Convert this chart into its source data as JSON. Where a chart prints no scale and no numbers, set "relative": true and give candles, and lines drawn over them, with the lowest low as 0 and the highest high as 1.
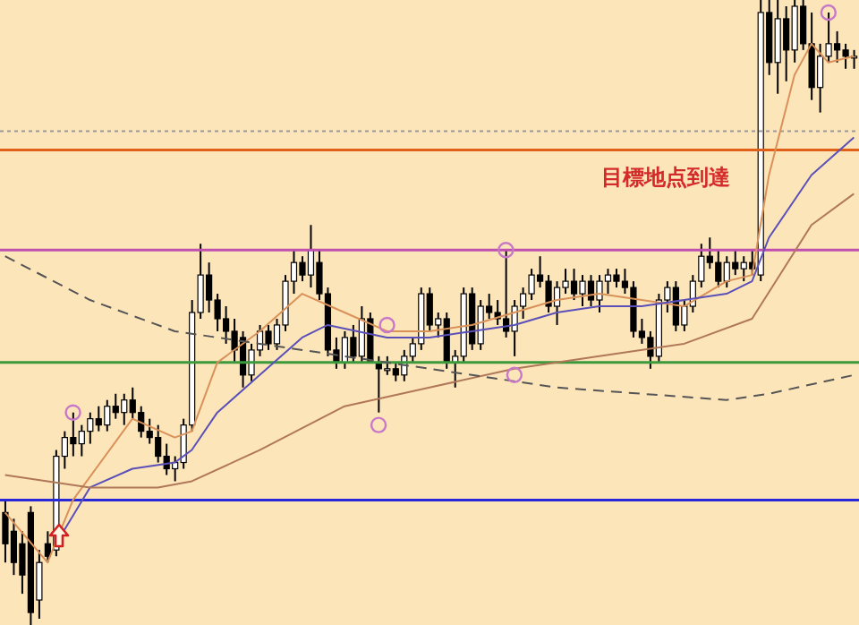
{
  "chart_data": {
    "type": "candlestick",
    "relative": true,
    "categories": [
      null,
      null,
      null,
      null,
      null,
      null,
      null,
      null,
      null,
      null,
      null,
      null,
      null,
      null,
      null,
      null,
      null,
      null,
      null,
      null,
      null,
      null,
      null,
      null,
      null,
      null,
      null,
      null,
      null,
      null,
      null,
      null,
      null,
      null,
      null,
      null,
      null,
      null,
      null,
      null,
      null,
      null,
      null,
      null,
      null,
      null,
      null,
      null,
      null,
      null,
      null,
      null,
      null,
      null,
      null,
      null,
      null,
      null,
      null,
      null,
      null,
      null,
      null,
      null,
      null,
      null,
      null,
      null,
      null,
      null,
      null,
      null,
      null,
      null,
      null,
      null,
      null,
      null,
      null,
      null,
      null,
      null,
      null,
      null,
      null,
      null,
      null,
      null,
      null,
      null,
      null,
      null,
      null,
      null,
      null,
      null,
      null,
      null,
      null,
      null,
      null
    ],
    "ohlc": [
      [
        0.18,
        0.2,
        0.1,
        0.13
      ],
      [
        0.15,
        0.17,
        0.08,
        0.1
      ],
      [
        0.13,
        0.15,
        0.05,
        0.08
      ],
      [
        0.18,
        0.19,
        0,
        0.02
      ],
      [
        0.04,
        0.12,
        0.01,
        0.1
      ],
      [
        0.13,
        0.15,
        0.1,
        0.11
      ],
      [
        0.12,
        0.28,
        0.11,
        0.27
      ],
      [
        0.27,
        0.31,
        0.25,
        0.3
      ],
      [
        0.3,
        0.34,
        0.27,
        0.29
      ],
      [
        0.29,
        0.32,
        0.27,
        0.31
      ],
      [
        0.31,
        0.34,
        0.29,
        0.33
      ],
      [
        0.33,
        0.35,
        0.31,
        0.32
      ],
      [
        0.32,
        0.36,
        0.31,
        0.35
      ],
      [
        0.35,
        0.37,
        0.33,
        0.34
      ],
      [
        0.34,
        0.37,
        0.32,
        0.36
      ],
      [
        0.36,
        0.38,
        0.33,
        0.34
      ],
      [
        0.34,
        0.35,
        0.3,
        0.31
      ],
      [
        0.31,
        0.33,
        0.29,
        0.3
      ],
      [
        0.3,
        0.32,
        0.26,
        0.27
      ],
      [
        0.27,
        0.29,
        0.24,
        0.25
      ],
      [
        0.25,
        0.27,
        0.23,
        0.26
      ],
      [
        0.26,
        0.33,
        0.25,
        0.32
      ],
      [
        0.32,
        0.52,
        0.31,
        0.5
      ],
      [
        0.5,
        0.61,
        0.49,
        0.56
      ],
      [
        0.56,
        0.58,
        0.5,
        0.52
      ],
      [
        0.52,
        0.53,
        0.47,
        0.49
      ],
      [
        0.49,
        0.51,
        0.45,
        0.47
      ],
      [
        0.47,
        0.49,
        0.42,
        0.44
      ],
      [
        0.46,
        0.47,
        0.38,
        0.4
      ],
      [
        0.4,
        0.45,
        0.39,
        0.44
      ],
      [
        0.44,
        0.48,
        0.43,
        0.47
      ],
      [
        0.47,
        0.48,
        0.44,
        0.45
      ],
      [
        0.45,
        0.49,
        0.44,
        0.48
      ],
      [
        0.48,
        0.56,
        0.47,
        0.55
      ],
      [
        0.55,
        0.6,
        0.53,
        0.58
      ],
      [
        0.58,
        0.59,
        0.55,
        0.56
      ],
      [
        0.56,
        0.64,
        0.54,
        0.6
      ],
      [
        0.58,
        0.6,
        0.52,
        0.53
      ],
      [
        0.53,
        0.54,
        0.43,
        0.44
      ],
      [
        0.44,
        0.46,
        0.41,
        0.42
      ],
      [
        0.42,
        0.47,
        0.41,
        0.46
      ],
      [
        0.46,
        0.48,
        0.42,
        0.43
      ],
      [
        0.43,
        0.51,
        0.42,
        0.49
      ],
      [
        0.49,
        0.5,
        0.42,
        0.42
      ],
      [
        0.42,
        0.43,
        0.34,
        0.41
      ],
      [
        0.41,
        0.43,
        0.4,
        0.41
      ],
      [
        0.41,
        0.42,
        0.39,
        0.4
      ],
      [
        0.4,
        0.44,
        0.39,
        0.43
      ],
      [
        0.43,
        0.46,
        0.42,
        0.45
      ],
      [
        0.45,
        0.54,
        0.44,
        0.53
      ],
      [
        0.53,
        0.54,
        0.47,
        0.48
      ],
      [
        0.48,
        0.5,
        0.46,
        0.49
      ],
      [
        0.49,
        0.5,
        0.41,
        0.42
      ],
      [
        0.42,
        0.44,
        0.38,
        0.43
      ],
      [
        0.43,
        0.54,
        0.42,
        0.53
      ],
      [
        0.53,
        0.54,
        0.44,
        0.45
      ],
      [
        0.45,
        0.52,
        0.44,
        0.51
      ],
      [
        0.51,
        0.53,
        0.49,
        0.5
      ],
      [
        0.5,
        0.52,
        0.48,
        0.49
      ],
      [
        0.49,
        0.6,
        0.46,
        0.47
      ],
      [
        0.47,
        0.52,
        0.43,
        0.51
      ],
      [
        0.51,
        0.54,
        0.49,
        0.53
      ],
      [
        0.53,
        0.57,
        0.52,
        0.56
      ],
      [
        0.56,
        0.59,
        0.54,
        0.55
      ],
      [
        0.55,
        0.56,
        0.5,
        0.51
      ],
      [
        0.51,
        0.55,
        0.48,
        0.54
      ],
      [
        0.54,
        0.57,
        0.53,
        0.55
      ],
      [
        0.55,
        0.57,
        0.52,
        0.53
      ],
      [
        0.53,
        0.56,
        0.51,
        0.55
      ],
      [
        0.55,
        0.56,
        0.51,
        0.52
      ],
      [
        0.52,
        0.56,
        0.5,
        0.55
      ],
      [
        0.55,
        0.57,
        0.53,
        0.56
      ],
      [
        0.56,
        0.57,
        0.54,
        0.55
      ],
      [
        0.55,
        0.57,
        0.53,
        0.54
      ],
      [
        0.54,
        0.55,
        0.46,
        0.47
      ],
      [
        0.47,
        0.49,
        0.45,
        0.46
      ],
      [
        0.46,
        0.47,
        0.41,
        0.43
      ],
      [
        0.43,
        0.53,
        0.42,
        0.52
      ],
      [
        0.52,
        0.55,
        0.5,
        0.54
      ],
      [
        0.54,
        0.55,
        0.47,
        0.48
      ],
      [
        0.48,
        0.52,
        0.47,
        0.51
      ],
      [
        0.51,
        0.56,
        0.5,
        0.55
      ],
      [
        0.55,
        0.61,
        0.54,
        0.59
      ],
      [
        0.59,
        0.62,
        0.57,
        0.58
      ],
      [
        0.58,
        0.6,
        0.54,
        0.55
      ],
      [
        0.55,
        0.59,
        0.54,
        0.58
      ],
      [
        0.58,
        0.6,
        0.56,
        0.57
      ],
      [
        0.57,
        0.59,
        0.55,
        0.58
      ],
      [
        0.58,
        0.6,
        0.56,
        0.57
      ],
      [
        0.56,
        1,
        0.55,
        0.98
      ],
      [
        0.98,
        1,
        0.88,
        0.9
      ],
      [
        0.9,
        1,
        0.85,
        0.97
      ],
      [
        0.97,
        0.99,
        0.87,
        0.92
      ],
      [
        0.92,
        1,
        0.9,
        0.99
      ],
      [
        0.99,
        1,
        0.92,
        0.93
      ],
      [
        0.93,
        0.98,
        0.84,
        0.86
      ],
      [
        0.86,
        0.93,
        0.82,
        0.91
      ],
      [
        0.91,
        0.98,
        0.9,
        0.93
      ],
      [
        0.93,
        0.95,
        0.9,
        0.92
      ],
      [
        0.92,
        0.93,
        0.89,
        0.91
      ],
      [
        0.91,
        0.92,
        0.89,
        0.91
      ]
    ],
    "series": [
      {
        "type": "line",
        "color": "#d9915a",
        "values": [
          0.18,
          null,
          null,
          null,
          null,
          0.1,
          null,
          null,
          0.2,
          null,
          null,
          null,
          null,
          null,
          null,
          0.33,
          null,
          null,
          null,
          null,
          0.3,
          null,
          0.31,
          null,
          null,
          0.42,
          null,
          null,
          null,
          null,
          0.47,
          null,
          null,
          null,
          null,
          0.53,
          null,
          null,
          null,
          null,
          0.5,
          null,
          null,
          null,
          null,
          0.47,
          null,
          null,
          null,
          null,
          0.47,
          null,
          null,
          null,
          null,
          0.48,
          null,
          null,
          null,
          null,
          0.5,
          null,
          null,
          null,
          null,
          0.52,
          null,
          null,
          null,
          null,
          0.53,
          null,
          null,
          null,
          null,
          0.52,
          null,
          null,
          null,
          null,
          0.51,
          null,
          null,
          null,
          null,
          0.55,
          null,
          null,
          0.56,
          null,
          0.72,
          null,
          null,
          0.88,
          null,
          0.93,
          null,
          0.9,
          null,
          null,
          0.91
        ]
      },
      {
        "type": "line",
        "color": "#5a50b8",
        "values": [
          null,
          null,
          null,
          null,
          null,
          null,
          0.13,
          null,
          null,
          null,
          0.22,
          null,
          null,
          null,
          null,
          0.25,
          null,
          null,
          null,
          null,
          0.26,
          null,
          0.28,
          null,
          null,
          0.34,
          null,
          null,
          null,
          null,
          0.4,
          null,
          null,
          null,
          null,
          0.46,
          null,
          null,
          0.48,
          null,
          null,
          null,
          null,
          null,
          null,
          0.46,
          null,
          null,
          null,
          null,
          0.46,
          null,
          null,
          null,
          null,
          0.47,
          null,
          null,
          null,
          null,
          0.48,
          null,
          null,
          null,
          null,
          0.5,
          null,
          null,
          null,
          null,
          0.51,
          null,
          null,
          null,
          null,
          0.51,
          null,
          null,
          null,
          null,
          0.52,
          null,
          null,
          null,
          null,
          0.53,
          null,
          null,
          0.55,
          null,
          0.62,
          null,
          null,
          null,
          null,
          0.72,
          null,
          null,
          null,
          null,
          0.78
        ]
      },
      {
        "type": "line",
        "color": "#b07858",
        "values": [
          0.24,
          null,
          null,
          null,
          null,
          null,
          null,
          null,
          null,
          null,
          0.22,
          null,
          null,
          null,
          null,
          null,
          null,
          null,
          0.22,
          null,
          null,
          null,
          0.23,
          null,
          null,
          null,
          null,
          null,
          null,
          null,
          0.28,
          null,
          null,
          null,
          null,
          null,
          null,
          null,
          null,
          null,
          0.35,
          null,
          null,
          null,
          null,
          null,
          null,
          null,
          null,
          null,
          0.38,
          null,
          null,
          null,
          null,
          null,
          null,
          null,
          null,
          null,
          0.41,
          null,
          null,
          null,
          null,
          null,
          null,
          null,
          null,
          null,
          0.43,
          null,
          null,
          null,
          null,
          null,
          null,
          null,
          null,
          null,
          0.45,
          null,
          null,
          null,
          null,
          null,
          null,
          null,
          0.49,
          null,
          null,
          null,
          null,
          null,
          null,
          0.64,
          null,
          null,
          null,
          null,
          0.69
        ]
      },
      {
        "type": "line",
        "color": "#555555",
        "line_style": "dashed",
        "values": [
          0.59,
          null,
          null,
          null,
          null,
          null,
          null,
          null,
          null,
          null,
          0.52,
          null,
          null,
          null,
          null,
          null,
          null,
          null,
          null,
          null,
          0.47,
          null,
          null,
          null,
          null,
          null,
          null,
          null,
          null,
          null,
          0.45,
          null,
          null,
          null,
          null,
          null,
          null,
          null,
          null,
          null,
          null,
          null,
          null,
          null,
          null,
          0.42,
          null,
          null,
          null,
          null,
          null,
          null,
          null,
          null,
          null,
          0.4,
          null,
          null,
          null,
          null,
          null,
          null,
          null,
          null,
          null,
          0.38,
          null,
          null,
          null,
          null,
          null,
          null,
          null,
          null,
          null,
          0.37,
          null,
          null,
          null,
          null,
          null,
          null,
          null,
          null,
          null,
          0.36,
          null,
          null,
          null,
          null,
          0.37,
          null,
          null,
          null,
          null,
          null,
          null,
          null,
          null,
          null,
          0.4
        ]
      },
      {
        "type": "scatter",
        "color": "#c878c8",
        "marker": "circle",
        "values": [
          null,
          null,
          null,
          null,
          null,
          null,
          null,
          null,
          0.34,
          null,
          null,
          null,
          null,
          null,
          null,
          null,
          null,
          null,
          null,
          null,
          null,
          null,
          null,
          null,
          null,
          null,
          null,
          null,
          null,
          null,
          null,
          null,
          null,
          null,
          null,
          null,
          null,
          null,
          null,
          null,
          null,
          null,
          null,
          null,
          0.32,
          0.48,
          null,
          null,
          null,
          null,
          null,
          null,
          null,
          null,
          null,
          null,
          null,
          null,
          null,
          0.6,
          0.4,
          null,
          null,
          null,
          null,
          null,
          null,
          null,
          null,
          null,
          null,
          null,
          null,
          null,
          null,
          null,
          null,
          null,
          null,
          null,
          null,
          null,
          null,
          null,
          null,
          null,
          null,
          null,
          null,
          null,
          null,
          null,
          null,
          null,
          null,
          null,
          null,
          0.98,
          null,
          null,
          null
        ]
      }
    ],
    "ref_lines": [
      {
        "axis": "y",
        "value": 0.79,
        "color": "#999999",
        "line_style": "dotted"
      },
      {
        "axis": "y",
        "value": 0.76,
        "color": "#e0601a"
      },
      {
        "axis": "y",
        "value": 0.6,
        "color": "#c050b0"
      },
      {
        "axis": "y",
        "value": 0.42,
        "color": "#3c9a3c"
      },
      {
        "axis": "y",
        "value": 0.2,
        "color": "#2828d8"
      }
    ],
    "annotations": [
      "目標地点到達"
    ],
    "grid": false,
    "legend": false
  }
}
